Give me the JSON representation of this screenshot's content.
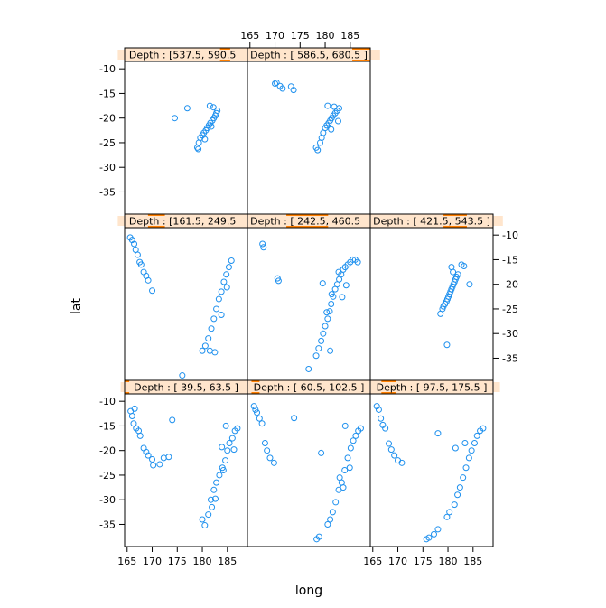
{
  "chart_data": {
    "type": "scatter",
    "xlabel": "long",
    "ylabel": "lat",
    "xlim": [
      164.5,
      189.0
    ],
    "ylim": [
      -39.5,
      -8.5
    ],
    "x_ticks": [
      165,
      170,
      175,
      180,
      185
    ],
    "y_ticks": [
      -10,
      -15,
      -20,
      -25,
      -30,
      -35
    ],
    "grid": false,
    "marker": "open-circle",
    "colors": {
      "points": "#1E90EE",
      "strip_bg": "#FFE5CC",
      "strip_fill": "#FF7F00",
      "border": "#000000"
    },
    "panels": [
      {
        "label": "Depth : [ 39.5, 63.5 ]",
        "range": [
          39.5,
          63.5
        ],
        "points": [
          [
            165.7,
            -12
          ],
          [
            166,
            -13
          ],
          [
            166.3,
            -14.5
          ],
          [
            166.8,
            -15.5
          ],
          [
            167.3,
            -16
          ],
          [
            166.5,
            -11.5
          ],
          [
            167.6,
            -17
          ],
          [
            168.3,
            -19.5
          ],
          [
            168.8,
            -20.3
          ],
          [
            169.2,
            -21
          ],
          [
            170,
            -21.8
          ],
          [
            170.2,
            -23
          ],
          [
            171.5,
            -22.8
          ],
          [
            172.3,
            -21.5
          ],
          [
            173.3,
            -21.3
          ],
          [
            174,
            -13.8
          ],
          [
            180,
            -34
          ],
          [
            180.5,
            -35.2
          ],
          [
            181.2,
            -33
          ],
          [
            181.7,
            -30
          ],
          [
            182.3,
            -28
          ],
          [
            182.8,
            -26.5
          ],
          [
            183.4,
            -25
          ],
          [
            184,
            -23.5
          ],
          [
            184.6,
            -22
          ],
          [
            185,
            -20
          ],
          [
            185.4,
            -18.5
          ],
          [
            186,
            -17.5
          ],
          [
            186.5,
            -16
          ],
          [
            187,
            -15.5
          ],
          [
            184.7,
            -15
          ],
          [
            183.9,
            -19.3
          ],
          [
            181.9,
            -31.5
          ],
          [
            182.6,
            -29.8
          ],
          [
            184.2,
            -24
          ],
          [
            186.3,
            -19.8
          ]
        ]
      },
      {
        "label": "Depth : [ 60.5, 102.5 ]",
        "range": [
          60.5,
          102.5
        ],
        "points": [
          [
            165.8,
            -11
          ],
          [
            166.1,
            -11.7
          ],
          [
            166.4,
            -12.3
          ],
          [
            166.9,
            -13.5
          ],
          [
            167.4,
            -14.5
          ],
          [
            168,
            -18.5
          ],
          [
            168.4,
            -20
          ],
          [
            169,
            -21.5
          ],
          [
            169.8,
            -22.5
          ],
          [
            173.8,
            -13.4
          ],
          [
            178.3,
            -38
          ],
          [
            178.8,
            -37.5
          ],
          [
            179.2,
            -20.5
          ],
          [
            180.5,
            -35
          ],
          [
            181,
            -34
          ],
          [
            181.5,
            -32.5
          ],
          [
            182.1,
            -30.5
          ],
          [
            182.7,
            -28
          ],
          [
            183.3,
            -26.5
          ],
          [
            183.9,
            -24
          ],
          [
            184.5,
            -21.5
          ],
          [
            185.1,
            -19.5
          ],
          [
            185.6,
            -18
          ],
          [
            186.1,
            -17
          ],
          [
            186.6,
            -16
          ],
          [
            187.1,
            -15.5
          ],
          [
            184,
            -15
          ],
          [
            184.9,
            -23.5
          ],
          [
            182.9,
            -25.5
          ],
          [
            183.6,
            -27.5
          ]
        ]
      },
      {
        "label": "Depth : [ 97.5, 175.5 ]",
        "range": [
          97.5,
          175.5
        ],
        "points": [
          [
            165.8,
            -11
          ],
          [
            166.2,
            -11.7
          ],
          [
            166.6,
            -13.5
          ],
          [
            167,
            -14.8
          ],
          [
            167.5,
            -15.5
          ],
          [
            168.2,
            -18.6
          ],
          [
            168.7,
            -19.8
          ],
          [
            169.3,
            -21
          ],
          [
            170,
            -22
          ],
          [
            170.8,
            -22.5
          ],
          [
            175.7,
            -38
          ],
          [
            176.2,
            -37.7
          ],
          [
            177.2,
            -37
          ],
          [
            178,
            -36
          ],
          [
            178,
            -16.5
          ],
          [
            179.8,
            -33.5
          ],
          [
            180.3,
            -32.5
          ],
          [
            181.3,
            -31
          ],
          [
            181.9,
            -29
          ],
          [
            182.4,
            -27.5
          ],
          [
            183,
            -25.5
          ],
          [
            183.6,
            -23.5
          ],
          [
            184.2,
            -21.5
          ],
          [
            184.7,
            -20
          ],
          [
            185.3,
            -18.5
          ],
          [
            185.8,
            -17
          ],
          [
            186.4,
            -16
          ],
          [
            187,
            -15.5
          ],
          [
            181.5,
            -19.5
          ],
          [
            183.4,
            -18.5
          ]
        ]
      },
      {
        "label": "Depth : [161.5, 249.5 ]",
        "range": [
          161.5,
          249.5
        ],
        "points": [
          [
            165.6,
            -10.5
          ],
          [
            166,
            -11
          ],
          [
            166.4,
            -11.8
          ],
          [
            166.7,
            -13
          ],
          [
            167.1,
            -14
          ],
          [
            167.5,
            -15.5
          ],
          [
            167.8,
            -16
          ],
          [
            168.3,
            -17.5
          ],
          [
            168.8,
            -18.3
          ],
          [
            169.2,
            -19.2
          ],
          [
            170,
            -21.3
          ],
          [
            176,
            -38.5
          ],
          [
            180,
            -33.5
          ],
          [
            180.6,
            -32.5
          ],
          [
            181.2,
            -31
          ],
          [
            181.8,
            -29
          ],
          [
            182.3,
            -27
          ],
          [
            182.8,
            -25
          ],
          [
            183.3,
            -23
          ],
          [
            183.8,
            -21.5
          ],
          [
            184.3,
            -19.5
          ],
          [
            184.8,
            -18
          ],
          [
            185.3,
            -16.5
          ],
          [
            185.8,
            -15.2
          ],
          [
            182.5,
            -33.8
          ],
          [
            183.8,
            -26.2
          ],
          [
            184.9,
            -20.6
          ],
          [
            181.5,
            -33.5
          ]
        ]
      },
      {
        "label": "Depth : [ 242.5, 460.5 ]",
        "range": [
          242.5,
          460.5
        ],
        "points": [
          [
            167.5,
            -11.8
          ],
          [
            167.7,
            -12.5
          ],
          [
            170.5,
            -18.8
          ],
          [
            170.7,
            -19.3
          ],
          [
            176.7,
            -37.2
          ],
          [
            178.2,
            -34.5
          ],
          [
            178.7,
            -33
          ],
          [
            179.2,
            -31.5
          ],
          [
            179.6,
            -30
          ],
          [
            180,
            -28.5
          ],
          [
            180.5,
            -27
          ],
          [
            180.9,
            -25.5
          ],
          [
            181.2,
            -24
          ],
          [
            181.6,
            -22.5
          ],
          [
            182,
            -21
          ],
          [
            182.4,
            -20
          ],
          [
            182.8,
            -19
          ],
          [
            183.2,
            -18
          ],
          [
            183.6,
            -17
          ],
          [
            184,
            -16.5
          ],
          [
            184.5,
            -16
          ],
          [
            185,
            -15.5
          ],
          [
            185.5,
            -15
          ],
          [
            186,
            -15
          ],
          [
            186.5,
            -15.5
          ],
          [
            179.5,
            -19.8
          ],
          [
            181.3,
            -22
          ],
          [
            181,
            -33.5
          ],
          [
            180.3,
            -25.7
          ],
          [
            183.4,
            -22.6
          ],
          [
            184.2,
            -20.2
          ],
          [
            182.7,
            -17.5
          ]
        ]
      },
      {
        "label": "Depth : [ 421.5, 543.5 ]",
        "range": [
          421.5,
          543.5
        ],
        "points": [
          [
            178.5,
            -26
          ],
          [
            178.9,
            -25
          ],
          [
            179.1,
            -24.5
          ],
          [
            179.4,
            -24
          ],
          [
            179.7,
            -23.5
          ],
          [
            179.9,
            -23
          ],
          [
            180.1,
            -22.5
          ],
          [
            180.3,
            -22
          ],
          [
            180.5,
            -21.5
          ],
          [
            180.7,
            -21
          ],
          [
            180.9,
            -20.5
          ],
          [
            181.1,
            -20
          ],
          [
            181.3,
            -19.5
          ],
          [
            181.5,
            -19
          ],
          [
            181.7,
            -18.5
          ],
          [
            182,
            -18
          ],
          [
            181,
            -17.5
          ],
          [
            180.7,
            -16.5
          ],
          [
            182.7,
            -16
          ],
          [
            183.2,
            -16.3
          ],
          [
            184.3,
            -20
          ],
          [
            179.8,
            -32.3
          ]
        ]
      },
      {
        "label": "Depth : [537.5, 590.5 ]",
        "range": [
          537.5,
          590.5
        ],
        "points": [
          [
            174.5,
            -20
          ],
          [
            177,
            -18
          ],
          [
            179,
            -26
          ],
          [
            179.3,
            -25
          ],
          [
            179.6,
            -24
          ],
          [
            180,
            -23.5
          ],
          [
            180.3,
            -23
          ],
          [
            180.7,
            -22.5
          ],
          [
            181,
            -22
          ],
          [
            181.3,
            -21.5
          ],
          [
            181.6,
            -21
          ],
          [
            182,
            -20.5
          ],
          [
            182.3,
            -20
          ],
          [
            182.6,
            -19.5
          ],
          [
            182.8,
            -19
          ],
          [
            183,
            -18.5
          ],
          [
            181.5,
            -17.5
          ],
          [
            182.2,
            -17.8
          ],
          [
            179.2,
            -26.3
          ],
          [
            180.5,
            -24.3
          ],
          [
            181.8,
            -21.7
          ]
        ]
      },
      {
        "label": "Depth : [ 586.5, 680.5 ]",
        "range": [
          586.5,
          680.5
        ],
        "points": [
          [
            170,
            -13
          ],
          [
            170.3,
            -12.8
          ],
          [
            171,
            -13.5
          ],
          [
            171.5,
            -14
          ],
          [
            173.2,
            -13.6
          ],
          [
            173.7,
            -14.3
          ],
          [
            178.2,
            -26
          ],
          [
            178.5,
            -26.5
          ],
          [
            179,
            -25
          ],
          [
            179.3,
            -24
          ],
          [
            179.6,
            -23
          ],
          [
            180,
            -22
          ],
          [
            180.3,
            -21.5
          ],
          [
            180.7,
            -21
          ],
          [
            181,
            -20.5
          ],
          [
            181.3,
            -20
          ],
          [
            181.6,
            -19.5
          ],
          [
            182,
            -19
          ],
          [
            182.4,
            -18.5
          ],
          [
            182.8,
            -18
          ],
          [
            180.5,
            -17.5
          ],
          [
            181.8,
            -17.7
          ],
          [
            182.6,
            -20.6
          ],
          [
            181.2,
            -22.3
          ]
        ]
      }
    ]
  }
}
